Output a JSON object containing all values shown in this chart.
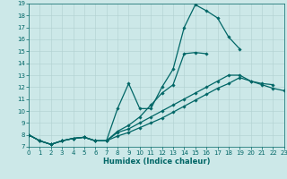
{
  "xlabel": "Humidex (Indice chaleur)",
  "bg_color": "#cce8e8",
  "line_color": "#006666",
  "grid_color": "#b0d0d0",
  "xlim": [
    0,
    23
  ],
  "ylim": [
    7,
    19
  ],
  "xticks": [
    0,
    1,
    2,
    3,
    4,
    5,
    6,
    7,
    8,
    9,
    10,
    11,
    12,
    13,
    14,
    15,
    16,
    17,
    18,
    19,
    20,
    21,
    22,
    23
  ],
  "yticks": [
    7,
    8,
    9,
    10,
    11,
    12,
    13,
    14,
    15,
    16,
    17,
    18,
    19
  ],
  "lines": [
    {
      "x": [
        0,
        1,
        2,
        3,
        4,
        5,
        6,
        7,
        8,
        9,
        10,
        11,
        12,
        13,
        14,
        15,
        16,
        17,
        18,
        19,
        20,
        21,
        22,
        23
      ],
      "y": [
        8.0,
        7.5,
        7.2,
        7.5,
        7.7,
        7.8,
        7.5,
        7.5,
        10.2,
        12.3,
        10.2,
        10.2,
        12.0,
        13.5,
        17.0,
        18.9,
        18.4,
        17.8,
        16.2,
        15.2,
        null,
        null,
        null,
        null
      ]
    },
    {
      "x": [
        0,
        1,
        2,
        3,
        4,
        5,
        6,
        7,
        8,
        9,
        10,
        11,
        12,
        13,
        14,
        15,
        16,
        17,
        18,
        19,
        20,
        21,
        22,
        23
      ],
      "y": [
        8.0,
        7.5,
        7.2,
        7.5,
        7.7,
        7.8,
        7.5,
        7.5,
        8.3,
        8.8,
        9.5,
        10.5,
        11.5,
        12.2,
        14.8,
        14.9,
        14.8,
        null,
        null,
        null,
        null,
        null,
        null,
        null
      ]
    },
    {
      "x": [
        0,
        1,
        2,
        3,
        4,
        5,
        6,
        7,
        8,
        9,
        10,
        11,
        12,
        13,
        14,
        15,
        16,
        17,
        18,
        19,
        20,
        21,
        22,
        23
      ],
      "y": [
        8.0,
        7.5,
        7.2,
        7.5,
        7.7,
        7.8,
        7.5,
        7.5,
        8.2,
        8.5,
        9.0,
        9.5,
        10.0,
        10.5,
        11.0,
        11.5,
        12.0,
        12.5,
        13.0,
        13.0,
        12.5,
        12.3,
        12.2,
        null
      ]
    },
    {
      "x": [
        0,
        1,
        2,
        3,
        4,
        5,
        6,
        7,
        8,
        9,
        10,
        11,
        12,
        13,
        14,
        15,
        16,
        17,
        18,
        19,
        20,
        21,
        22,
        23
      ],
      "y": [
        8.0,
        7.5,
        7.2,
        7.5,
        7.7,
        7.8,
        7.5,
        7.5,
        7.9,
        8.2,
        8.6,
        9.0,
        9.4,
        9.9,
        10.4,
        10.9,
        11.4,
        11.9,
        12.3,
        12.8,
        12.5,
        12.2,
        11.9,
        11.7
      ]
    }
  ]
}
